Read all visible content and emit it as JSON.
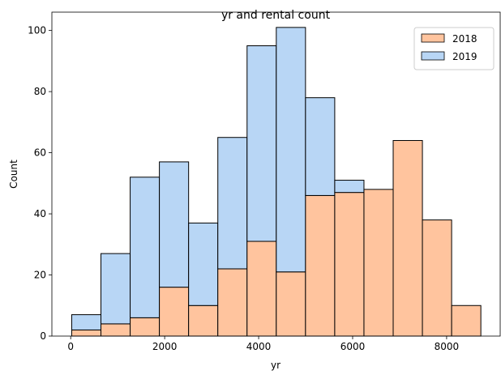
{
  "chart_data": {
    "type": "bar",
    "title": "yr and rental count",
    "xlabel": "yr",
    "ylabel": "Count",
    "stacked": true,
    "bin_start": 22,
    "bin_width": 621.9,
    "xlim": [
      -400,
      9140
    ],
    "ylim": [
      0,
      106
    ],
    "xticks": [
      0,
      2000,
      4000,
      6000,
      8000
    ],
    "yticks": [
      0,
      20,
      40,
      60,
      80,
      100
    ],
    "grid": false,
    "legend_position": "top-right",
    "series": [
      {
        "name": "2018",
        "color": "#ffc49e",
        "values": [
          2,
          4,
          6,
          16,
          10,
          22,
          31,
          21,
          46,
          47,
          48,
          64,
          38,
          10
        ]
      },
      {
        "name": "2019",
        "color": "#b8d6f5",
        "values": [
          5,
          23,
          46,
          41,
          27,
          43,
          64,
          80,
          32,
          4,
          0,
          0,
          0,
          0
        ]
      }
    ]
  }
}
